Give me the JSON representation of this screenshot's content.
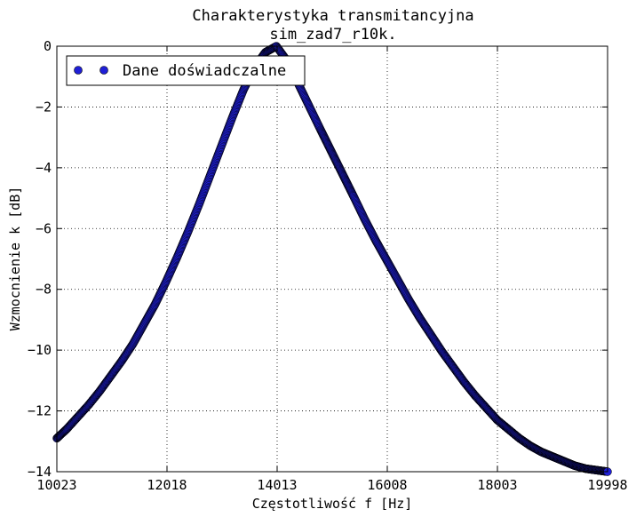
{
  "chart_data": {
    "type": "scatter",
    "title": "Charakterystyka transmitancyjna",
    "subtitle": "sim_zad7_r10k.",
    "xlabel": "Częstotliwość f [Hz]",
    "ylabel": "Wzmocnienie k [dB]",
    "xlim": [
      10023,
      19998
    ],
    "ylim": [
      -14,
      0
    ],
    "x_ticks": [
      "10023",
      "12018",
      "14013",
      "16008",
      "18003",
      "19998"
    ],
    "y_ticks": [
      "0",
      "−2",
      "−4",
      "−6",
      "−8",
      "−10",
      "−12",
      "−14"
    ],
    "grid": true,
    "legend_position": "top-left",
    "series": [
      {
        "name": "Dane doświadczalne",
        "color": "#1f1fd6",
        "marker": "circle",
        "x": [
          10023,
          10200,
          10400,
          10600,
          10800,
          11000,
          11200,
          11400,
          11600,
          11800,
          12000,
          12200,
          12400,
          12600,
          12800,
          13000,
          13200,
          13400,
          13600,
          13800,
          14000,
          14200,
          14400,
          14600,
          14800,
          14950,
          15100,
          15250,
          15400,
          15600,
          15800,
          16000,
          16200,
          16400,
          16600,
          16800,
          17000,
          17200,
          17400,
          17600,
          17800,
          18000,
          18200,
          18400,
          18600,
          18800,
          19000,
          19200,
          19400,
          19600,
          19800,
          19998
        ],
        "values": [
          -12.9,
          -12.6,
          -12.2,
          -11.8,
          -11.35,
          -10.85,
          -10.35,
          -9.8,
          -9.15,
          -8.5,
          -7.75,
          -6.95,
          -6.1,
          -5.2,
          -4.25,
          -3.3,
          -2.35,
          -1.45,
          -0.7,
          -0.2,
          0,
          -0.5,
          -1.25,
          -2.0,
          -2.75,
          -3.3,
          -3.85,
          -4.4,
          -4.95,
          -5.7,
          -6.4,
          -7.05,
          -7.7,
          -8.35,
          -8.95,
          -9.5,
          -10.05,
          -10.55,
          -11.05,
          -11.5,
          -11.9,
          -12.3,
          -12.6,
          -12.9,
          -13.15,
          -13.35,
          -13.5,
          -13.65,
          -13.8,
          -13.9,
          -13.95,
          -14.0
        ]
      }
    ]
  }
}
